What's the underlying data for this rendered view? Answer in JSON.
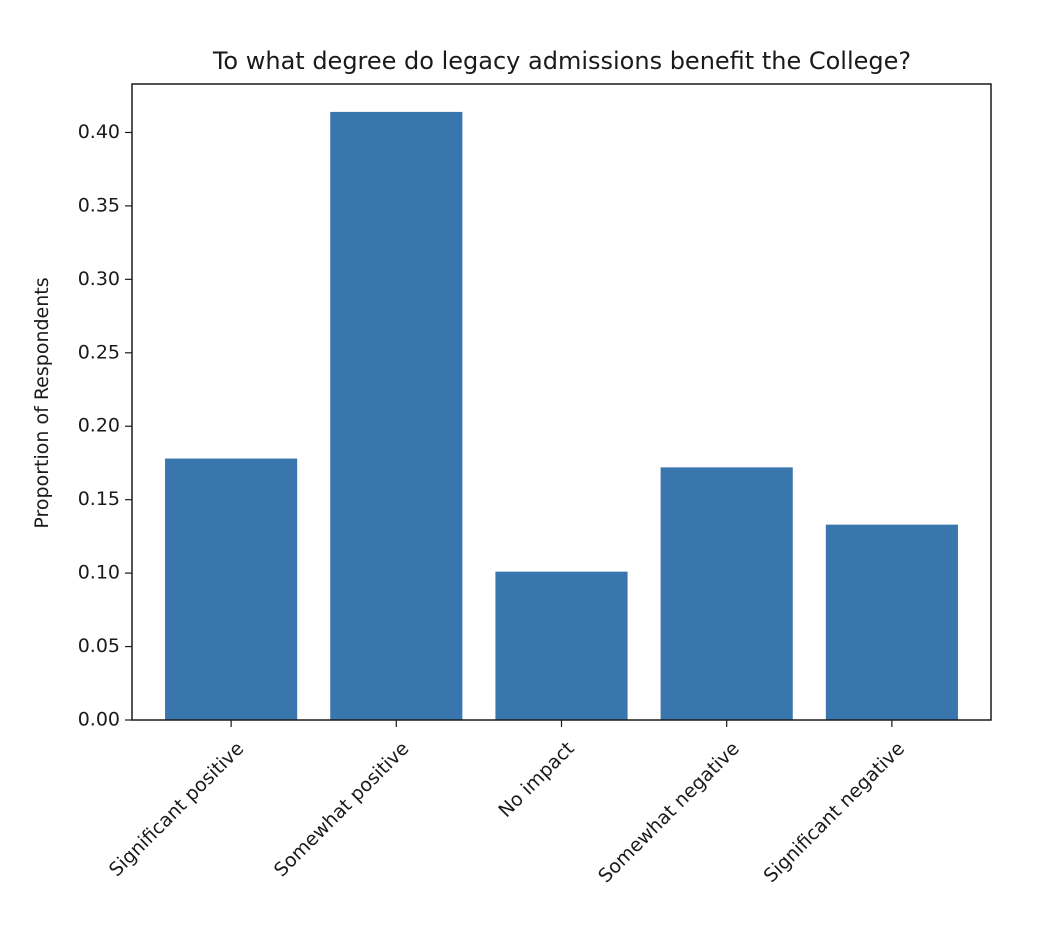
{
  "chart_data": {
    "type": "bar",
    "title": "To what degree do legacy admissions benefit the College?",
    "xlabel": "",
    "ylabel": "Proportion of Respondents",
    "categories": [
      "Significant positive",
      "Somewhat positive",
      "No impact",
      "Somewhat negative",
      "Significant negative"
    ],
    "values": [
      0.178,
      0.414,
      0.101,
      0.172,
      0.133
    ],
    "ylim": [
      0,
      0.433
    ],
    "yticks": [
      "0.00",
      "0.05",
      "0.10",
      "0.15",
      "0.20",
      "0.25",
      "0.30",
      "0.35",
      "0.40"
    ],
    "bar_color": "#3a76ae",
    "grid": false,
    "legend": "none"
  }
}
